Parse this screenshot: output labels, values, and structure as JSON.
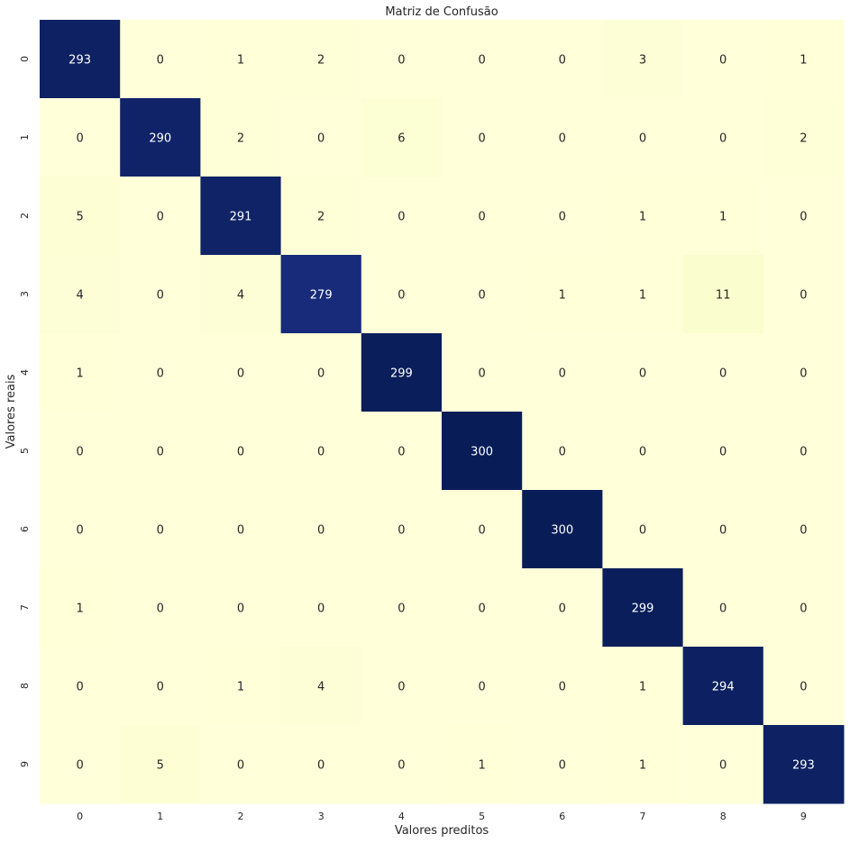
{
  "chart_data": {
    "type": "heatmap",
    "title": "Matriz de Confusão",
    "xlabel": "Valores preditos",
    "ylabel": "Valores reais",
    "x_categories": [
      "0",
      "1",
      "2",
      "3",
      "4",
      "5",
      "6",
      "7",
      "8",
      "9"
    ],
    "y_categories": [
      "0",
      "1",
      "2",
      "3",
      "4",
      "5",
      "6",
      "7",
      "8",
      "9"
    ],
    "values": [
      [
        293,
        0,
        1,
        2,
        0,
        0,
        0,
        3,
        0,
        1
      ],
      [
        0,
        290,
        2,
        0,
        6,
        0,
        0,
        0,
        0,
        2
      ],
      [
        5,
        0,
        291,
        2,
        0,
        0,
        0,
        1,
        1,
        0
      ],
      [
        4,
        0,
        4,
        279,
        0,
        0,
        1,
        1,
        11,
        0
      ],
      [
        1,
        0,
        0,
        0,
        299,
        0,
        0,
        0,
        0,
        0
      ],
      [
        0,
        0,
        0,
        0,
        0,
        300,
        0,
        0,
        0,
        0
      ],
      [
        0,
        0,
        0,
        0,
        0,
        0,
        300,
        0,
        0,
        0
      ],
      [
        1,
        0,
        0,
        0,
        0,
        0,
        0,
        299,
        0,
        0
      ],
      [
        0,
        0,
        1,
        4,
        0,
        0,
        0,
        1,
        294,
        0
      ],
      [
        0,
        5,
        0,
        0,
        0,
        1,
        0,
        1,
        0,
        293
      ]
    ],
    "value_range": [
      0,
      300
    ],
    "colormap": "YlGnBu",
    "colors": {
      "low": "#ffffd9",
      "high": "#081d58",
      "text_dark": "#262626",
      "text_light": "#ffffff"
    },
    "colorbar": false,
    "grid": false
  }
}
